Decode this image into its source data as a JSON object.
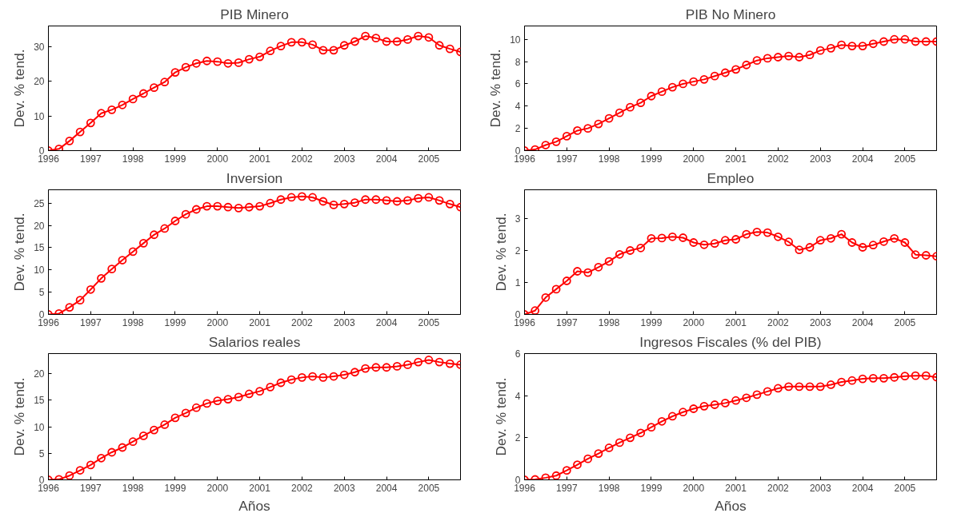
{
  "chart_data": [
    {
      "type": "line",
      "title": "PIB Minero",
      "ylabel": "Dev. % tend.",
      "marker": "circle",
      "line_style": "solid",
      "grid": false,
      "x": [
        1996,
        1996.25,
        1996.5,
        1996.75,
        1997,
        1997.25,
        1997.5,
        1997.75,
        1998,
        1998.25,
        1998.5,
        1998.75,
        1999,
        1999.25,
        1999.5,
        1999.75,
        2000,
        2000.25,
        2000.5,
        2000.75,
        2001,
        2001.25,
        2001.5,
        2001.75,
        2002,
        2002.25,
        2002.5,
        2002.75,
        2003,
        2003.25,
        2003.5,
        2003.75,
        2004,
        2004.25,
        2004.5,
        2004.75,
        2005,
        2005.25,
        2005.5,
        2005.75
      ],
      "series": [
        {
          "color": "#ff0000",
          "values": [
            0,
            0.5,
            2.8,
            5.4,
            8,
            10.8,
            11.8,
            13.2,
            14.9,
            16.5,
            18.2,
            19.8,
            22.6,
            24.1,
            25.2,
            25.9,
            25.7,
            25.2,
            25.4,
            26.4,
            27.1,
            28.8,
            30.2,
            31.3,
            31.3,
            30.6,
            29,
            29,
            30.4,
            31.5,
            33.1,
            32.5,
            31.5,
            31.5,
            32.1,
            33.1,
            32.7,
            30.4,
            29.4,
            28.5
          ]
        }
      ],
      "xlim": [
        1996,
        2005.75
      ],
      "xticks": [
        1996,
        1997,
        1998,
        1999,
        2000,
        2001,
        2002,
        2003,
        2004,
        2005
      ],
      "ylim": [
        0,
        36
      ],
      "yticks": [
        0,
        10,
        20,
        30
      ]
    },
    {
      "type": "line",
      "title": "PIB No Minero",
      "ylabel": "Dev. % tend.",
      "marker": "circle",
      "line_style": "solid",
      "grid": false,
      "x": [
        1996,
        1996.25,
        1996.5,
        1996.75,
        1997,
        1997.25,
        1997.5,
        1997.75,
        1998,
        1998.25,
        1998.5,
        1998.75,
        1999,
        1999.25,
        1999.5,
        1999.75,
        2000,
        2000.25,
        2000.5,
        2000.75,
        2001,
        2001.25,
        2001.5,
        2001.75,
        2002,
        2002.25,
        2002.5,
        2002.75,
        2003,
        2003.25,
        2003.5,
        2003.75,
        2004,
        2004.25,
        2004.5,
        2004.75,
        2005,
        2005.25,
        2005.5,
        2005.75
      ],
      "series": [
        {
          "color": "#ff0000",
          "values": [
            0,
            0.1,
            0.5,
            0.8,
            1.3,
            1.8,
            2,
            2.4,
            2.9,
            3.4,
            3.9,
            4.3,
            4.9,
            5.3,
            5.7,
            6,
            6.2,
            6.4,
            6.7,
            7,
            7.3,
            7.7,
            8.1,
            8.3,
            8.4,
            8.5,
            8.4,
            8.6,
            9,
            9.2,
            9.5,
            9.4,
            9.4,
            9.6,
            9.8,
            10,
            10,
            9.8,
            9.8,
            9.8
          ]
        }
      ],
      "xlim": [
        1996,
        2005.75
      ],
      "xticks": [
        1996,
        1997,
        1998,
        1999,
        2000,
        2001,
        2002,
        2003,
        2004,
        2005
      ],
      "ylim": [
        0,
        11.2
      ],
      "yticks": [
        0,
        2,
        4,
        6,
        8,
        10
      ]
    },
    {
      "type": "line",
      "title": "Inversion",
      "ylabel": "Dev. % tend.",
      "marker": "circle",
      "line_style": "solid",
      "grid": false,
      "x": [
        1996,
        1996.25,
        1996.5,
        1996.75,
        1997,
        1997.25,
        1997.5,
        1997.75,
        1998,
        1998.25,
        1998.5,
        1998.75,
        1999,
        1999.25,
        1999.5,
        1999.75,
        2000,
        2000.25,
        2000.5,
        2000.75,
        2001,
        2001.25,
        2001.5,
        2001.75,
        2002,
        2002.25,
        2002.5,
        2002.75,
        2003,
        2003.25,
        2003.5,
        2003.75,
        2004,
        2004.25,
        2004.5,
        2004.75,
        2005,
        2005.25,
        2005.5,
        2005.75
      ],
      "series": [
        {
          "color": "#ff0000",
          "values": [
            0,
            0.2,
            1.6,
            3.2,
            5.6,
            8.1,
            10.2,
            12.2,
            14.1,
            16,
            17.9,
            19.3,
            21,
            22.5,
            23.6,
            24.3,
            24.3,
            24.1,
            23.9,
            24.1,
            24.3,
            25,
            25.8,
            26.3,
            26.5,
            26.3,
            25.4,
            24.6,
            24.8,
            25.1,
            25.8,
            25.8,
            25.6,
            25.4,
            25.6,
            26.1,
            26.3,
            25.6,
            24.8,
            24.1
          ]
        }
      ],
      "xlim": [
        1996,
        2005.75
      ],
      "xticks": [
        1996,
        1997,
        1998,
        1999,
        2000,
        2001,
        2002,
        2003,
        2004,
        2005
      ],
      "ylim": [
        0,
        28
      ],
      "yticks": [
        0,
        5,
        10,
        15,
        20,
        25
      ]
    },
    {
      "type": "line",
      "title": "Empleo",
      "ylabel": "Dev. % tend.",
      "marker": "circle",
      "line_style": "solid",
      "grid": false,
      "x": [
        1996,
        1996.25,
        1996.5,
        1996.75,
        1997,
        1997.25,
        1997.5,
        1997.75,
        1998,
        1998.25,
        1998.5,
        1998.75,
        1999,
        1999.25,
        1999.5,
        1999.75,
        2000,
        2000.25,
        2000.5,
        2000.75,
        2001,
        2001.25,
        2001.5,
        2001.75,
        2002,
        2002.25,
        2002.5,
        2002.75,
        2003,
        2003.25,
        2003.5,
        2003.75,
        2004,
        2004.25,
        2004.5,
        2004.75,
        2005,
        2005.25,
        2005.5,
        2005.75
      ],
      "series": [
        {
          "color": "#ff0000",
          "values": [
            0,
            0.12,
            0.53,
            0.79,
            1.05,
            1.35,
            1.31,
            1.48,
            1.66,
            1.88,
            2,
            2.08,
            2.38,
            2.39,
            2.43,
            2.4,
            2.25,
            2.18,
            2.22,
            2.32,
            2.35,
            2.51,
            2.58,
            2.56,
            2.43,
            2.27,
            2.02,
            2.1,
            2.32,
            2.38,
            2.51,
            2.25,
            2.1,
            2.17,
            2.28,
            2.38,
            2.25,
            1.87,
            1.85,
            1.82
          ]
        }
      ],
      "xlim": [
        1996,
        2005.75
      ],
      "xticks": [
        1996,
        1997,
        1998,
        1999,
        2000,
        2001,
        2002,
        2003,
        2004,
        2005
      ],
      "ylim": [
        0,
        3.9
      ],
      "yticks": [
        0,
        1,
        2,
        3
      ]
    },
    {
      "type": "line",
      "title": "Salarios reales",
      "xlabel": "Años",
      "ylabel": "Dev. % tend.",
      "marker": "circle",
      "line_style": "solid",
      "grid": false,
      "x": [
        1996,
        1996.25,
        1996.5,
        1996.75,
        1997,
        1997.25,
        1997.5,
        1997.75,
        1998,
        1998.25,
        1998.5,
        1998.75,
        1999,
        1999.25,
        1999.5,
        1999.75,
        2000,
        2000.25,
        2000.5,
        2000.75,
        2001,
        2001.25,
        2001.5,
        2001.75,
        2002,
        2002.25,
        2002.5,
        2002.75,
        2003,
        2003.25,
        2003.5,
        2003.75,
        2004,
        2004.25,
        2004.5,
        2004.75,
        2005,
        2005.25,
        2005.5,
        2005.75
      ],
      "series": [
        {
          "color": "#ff0000",
          "values": [
            0,
            0.1,
            0.8,
            1.8,
            2.8,
            4.1,
            5.2,
            6.1,
            7.2,
            8.3,
            9.4,
            10.4,
            11.7,
            12.6,
            13.6,
            14.4,
            14.9,
            15.2,
            15.6,
            16.2,
            16.7,
            17.5,
            18.3,
            18.9,
            19.3,
            19.5,
            19.3,
            19.5,
            19.8,
            20.3,
            21,
            21.2,
            21.2,
            21.4,
            21.7,
            22.2,
            22.6,
            22.2,
            21.9,
            21.7
          ]
        }
      ],
      "xlim": [
        1996,
        2005.75
      ],
      "xticks": [
        1996,
        1997,
        1998,
        1999,
        2000,
        2001,
        2002,
        2003,
        2004,
        2005
      ],
      "ylim": [
        0,
        23.8
      ],
      "yticks": [
        0,
        5,
        10,
        15,
        20
      ]
    },
    {
      "type": "line",
      "title": "Ingresos Fiscales (% del PIB)",
      "xlabel": "Años",
      "ylabel": "Dev. % tend.",
      "marker": "circle",
      "line_style": "solid",
      "grid": false,
      "x": [
        1996,
        1996.25,
        1996.5,
        1996.75,
        1997,
        1997.25,
        1997.5,
        1997.75,
        1998,
        1998.25,
        1998.5,
        1998.75,
        1999,
        1999.25,
        1999.5,
        1999.75,
        2000,
        2000.25,
        2000.5,
        2000.75,
        2001,
        2001.25,
        2001.5,
        2001.75,
        2002,
        2002.25,
        2002.5,
        2002.75,
        2003,
        2003.25,
        2003.5,
        2003.75,
        2004,
        2004.25,
        2004.5,
        2004.75,
        2005,
        2005.25,
        2005.5,
        2005.75
      ],
      "series": [
        {
          "color": "#ff0000",
          "values": [
            0,
            0.02,
            0.1,
            0.2,
            0.45,
            0.72,
            1,
            1.25,
            1.52,
            1.77,
            2,
            2.23,
            2.5,
            2.78,
            3.02,
            3.22,
            3.38,
            3.5,
            3.57,
            3.65,
            3.77,
            3.9,
            4.05,
            4.2,
            4.35,
            4.43,
            4.43,
            4.43,
            4.43,
            4.52,
            4.65,
            4.72,
            4.8,
            4.83,
            4.83,
            4.87,
            4.93,
            4.95,
            4.95,
            4.88
          ]
        }
      ],
      "xlim": [
        1996,
        2005.75
      ],
      "xticks": [
        1996,
        1997,
        1998,
        1999,
        2000,
        2001,
        2002,
        2003,
        2004,
        2005
      ],
      "ylim": [
        0,
        6
      ],
      "yticks": [
        0,
        2,
        4,
        6
      ]
    }
  ]
}
